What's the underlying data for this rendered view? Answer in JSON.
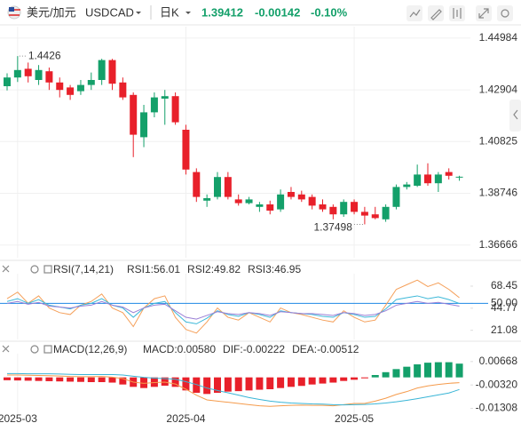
{
  "header": {
    "symbol": "美元/加元",
    "code": "USDCAD",
    "period": "日K",
    "price": "1.39412",
    "change": "-0.00142",
    "change_pct": "-0.10%"
  },
  "chart_data": [
    {
      "type": "candlestick",
      "up_color": "#14a06a",
      "down_color": "#e8202a",
      "categories": [
        null,
        "2025-03",
        null,
        null,
        null,
        null,
        null,
        null,
        null,
        null,
        null,
        null,
        null,
        null,
        null,
        null,
        null,
        "2025-04",
        null,
        null,
        null,
        null,
        null,
        null,
        null,
        null,
        null,
        null,
        null,
        null,
        null,
        null,
        null,
        "2025-05",
        null,
        null,
        null,
        null,
        null,
        null,
        null,
        null,
        null,
        null
      ],
      "open": [
        1.4305,
        1.434,
        1.4375,
        1.433,
        1.4365,
        1.432,
        1.43,
        1.4285,
        1.431,
        1.433,
        1.441,
        1.432,
        1.427,
        1.41,
        1.42,
        1.4255,
        1.4265,
        1.413,
        1.396,
        1.3845,
        1.386,
        1.394,
        1.385,
        1.3835,
        1.382,
        1.383,
        1.381,
        1.388,
        1.387,
        1.386,
        1.383,
        1.382,
        1.379,
        1.384,
        1.38,
        1.379,
        1.377,
        1.382,
        1.39,
        1.3905,
        1.395,
        1.3915,
        1.396,
        1.394
      ],
      "high": [
        1.4357,
        1.4426,
        1.44,
        1.439,
        1.438,
        1.434,
        1.431,
        1.433,
        1.436,
        1.44152,
        1.4415,
        1.434,
        1.428,
        1.423,
        1.428,
        1.429,
        1.428,
        1.415,
        1.3975,
        1.387,
        1.396,
        1.396,
        1.387,
        1.386,
        1.384,
        1.3845,
        1.389,
        1.39,
        1.3885,
        1.387,
        1.385,
        1.383,
        1.385,
        1.385,
        1.382,
        1.382,
        1.383,
        1.391,
        1.392,
        1.399,
        1.3995,
        1.396,
        1.3975,
        1.3945
      ],
      "low": [
        1.4288,
        1.4322,
        1.432,
        1.431,
        1.429,
        1.426,
        1.425,
        1.427,
        1.429,
        1.431,
        1.429,
        1.425,
        1.402,
        1.406,
        1.418,
        1.415,
        1.415,
        1.395,
        1.384,
        1.382,
        1.385,
        1.385,
        1.3825,
        1.383,
        1.38,
        1.379,
        1.38,
        1.385,
        1.384,
        1.381,
        1.38,
        1.377,
        1.378,
        1.379,
        1.37498,
        1.377,
        1.376,
        1.381,
        1.389,
        1.39,
        1.3905,
        1.388,
        1.393,
        1.3925
      ],
      "close": [
        1.434,
        1.437,
        1.4345,
        1.437,
        1.432,
        1.429,
        1.427,
        1.431,
        1.433,
        1.441,
        1.4315,
        1.426,
        1.411,
        1.42,
        1.426,
        1.4265,
        1.416,
        1.397,
        1.386,
        1.3855,
        1.394,
        1.386,
        1.3835,
        1.385,
        1.383,
        1.3805,
        1.387,
        1.386,
        1.385,
        1.3825,
        1.381,
        1.379,
        1.384,
        1.38,
        1.3785,
        1.3775,
        1.382,
        1.39,
        1.391,
        1.395,
        1.3915,
        1.395,
        1.3945,
        1.39412
      ],
      "ylim": [
        1.363,
        1.453
      ],
      "yticks": [
        1.44984,
        1.42904,
        1.40825,
        1.38746,
        1.36666
      ],
      "grid": true,
      "tick_color": "#d0302f"
    },
    {
      "type": "line",
      "title": "RSI(7,14,21)",
      "ylim": [
        15,
        78
      ],
      "yticks": [
        68.45,
        {
          "value": 50,
          "label": "50.00"
        },
        44.77,
        21.08
      ],
      "ref_line": 50,
      "ref_color": "#1e88e5",
      "tick_color": "#555555",
      "series": [
        {
          "name": "RSI1:56.01",
          "color": "#f5a05a",
          "values": [
            55,
            62,
            50,
            58,
            45,
            40,
            38,
            48,
            52,
            60,
            45,
            40,
            25,
            45,
            55,
            58,
            35,
            22,
            18,
            30,
            45,
            35,
            32,
            40,
            35,
            30,
            45,
            40,
            38,
            35,
            32,
            30,
            42,
            35,
            30,
            32,
            48,
            65,
            70,
            75,
            68,
            72,
            65,
            56.01
          ]
        },
        {
          "name": "RSI2:49.82",
          "color": "#3cb8d8",
          "values": [
            52,
            55,
            50,
            54,
            48,
            46,
            44,
            48,
            50,
            55,
            48,
            45,
            35,
            45,
            50,
            52,
            40,
            30,
            28,
            34,
            42,
            38,
            36,
            40,
            38,
            35,
            42,
            40,
            39,
            38,
            36,
            35,
            40,
            38,
            35,
            36,
            44,
            54,
            56,
            58,
            55,
            57,
            54,
            49.82
          ]
        },
        {
          "name": "RSI3:46.95",
          "color": "#9a7fd6",
          "values": [
            50,
            52,
            49,
            51,
            47,
            46,
            45,
            47,
            48,
            52,
            48,
            46,
            40,
            45,
            48,
            49,
            42,
            35,
            33,
            37,
            41,
            39,
            38,
            40,
            39,
            37,
            41,
            40,
            39,
            39,
            38,
            37,
            40,
            39,
            37,
            38,
            42,
            48,
            50,
            52,
            50,
            51,
            49,
            46.95
          ]
        }
      ]
    },
    {
      "type": "macd",
      "title": "MACD(12,26,9)",
      "ylim": [
        -0.014,
        0.0085
      ],
      "yticks": [
        0.00668,
        {
          "value": -0.0032,
          "label": "-0.00320"
        },
        -0.01308
      ],
      "up_color": "#14a06a",
      "down_color": "#e8202a",
      "tick_color": "#555555",
      "series": [
        {
          "name": "MACD:0.00580",
          "color": "#9a7fd6",
          "values": [
            -0.0012,
            -0.0013,
            -0.0014,
            -0.0015,
            -0.0016,
            -0.0017,
            -0.0018,
            -0.0019,
            -0.002,
            -0.002,
            -0.0022,
            -0.003,
            -0.004,
            -0.0045,
            -0.004,
            -0.0035,
            -0.004,
            -0.0055,
            -0.0065,
            -0.007,
            -0.0065,
            -0.006,
            -0.0058,
            -0.0055,
            -0.0052,
            -0.005,
            -0.0045,
            -0.004,
            -0.0036,
            -0.003,
            -0.0026,
            -0.0022,
            -0.0015,
            -0.001,
            -0.0004,
            0.001,
            0.0022,
            0.0035,
            0.0045,
            0.0055,
            0.0062,
            0.0064,
            0.0064,
            0.0058
          ]
        },
        {
          "name": "DIF:-0.00222",
          "color": "#f59b4c",
          "values": [
            0.001,
            0.001,
            0.0009,
            0.0008,
            0.0007,
            0.0006,
            0.0004,
            0.0003,
            0.0003,
            0.0004,
            0.0001,
            -0.0005,
            -0.002,
            -0.0025,
            -0.0022,
            -0.002,
            -0.0028,
            -0.005,
            -0.0075,
            -0.0095,
            -0.01,
            -0.0105,
            -0.011,
            -0.0115,
            -0.012,
            -0.0122,
            -0.012,
            -0.0118,
            -0.0117,
            -0.0118,
            -0.0118,
            -0.012,
            -0.0115,
            -0.011,
            -0.011,
            -0.01,
            -0.0088,
            -0.0072,
            -0.006,
            -0.0045,
            -0.0036,
            -0.003,
            -0.0025,
            -0.00222
          ]
        },
        {
          "name": "DEA:-0.00512",
          "color": "#39b5d6",
          "values": [
            0.0016,
            0.0016,
            0.0015,
            0.0015,
            0.0015,
            0.0014,
            0.0013,
            0.0012,
            0.0012,
            0.0012,
            0.0012,
            0.001,
            0.0005,
            0.0,
            -0.0003,
            -0.0005,
            -0.0008,
            -0.0018,
            -0.003,
            -0.0045,
            -0.0055,
            -0.0065,
            -0.0075,
            -0.0085,
            -0.0093,
            -0.01,
            -0.0105,
            -0.0108,
            -0.011,
            -0.0112,
            -0.0113,
            -0.0115,
            -0.0116,
            -0.0115,
            -0.0114,
            -0.0112,
            -0.0108,
            -0.0103,
            -0.0097,
            -0.009,
            -0.0082,
            -0.0074,
            -0.0066,
            -0.00512
          ]
        }
      ]
    }
  ]
}
